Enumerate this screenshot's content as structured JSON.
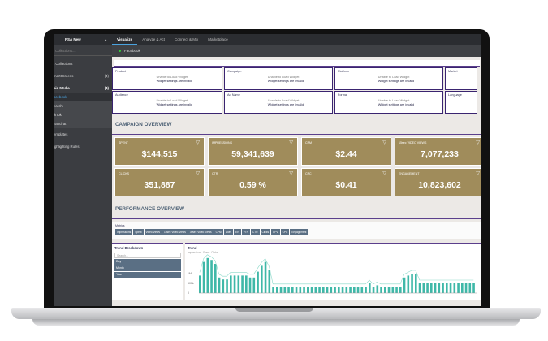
{
  "topbar": {
    "brand": "PSA New",
    "tabs": [
      "Visualize",
      "Analyze & Act",
      "Connect & Mix",
      "Marketplace"
    ]
  },
  "sidebar": {
    "search_placeholder": "Collections...",
    "items": [
      {
        "label": "t Collections",
        "count": ""
      },
      {
        "label": "martScreens",
        "count": "(4)"
      },
      {
        "label": "aid Media",
        "count": "(4)"
      },
      {
        "label": "acebook",
        "count": ""
      },
      {
        "label": "earch",
        "count": ""
      },
      {
        "label": "ikTok",
        "count": ""
      },
      {
        "label": "napchat",
        "count": ""
      },
      {
        "label": "emplates",
        "count": ""
      },
      {
        "label": "ighlighting Rules",
        "count": ""
      }
    ]
  },
  "subheader": {
    "label": "Facebook"
  },
  "widgets": [
    {
      "title": "Product",
      "line1": "Unable to Load Widget",
      "line2": "Widget settings are invalid"
    },
    {
      "title": "Campaign",
      "line1": "Unable to Load Widget",
      "line2": "Widget settings are invalid"
    },
    {
      "title": "Platform",
      "line1": "Unable to Load Widget",
      "line2": "Widget settings are invalid"
    },
    {
      "title": "Market",
      "line1": "",
      "line2": ""
    },
    {
      "title": "Audience",
      "line1": "Unable to Load Widget",
      "line2": "Widget settings are invalid"
    },
    {
      "title": "Ad Name",
      "line1": "Unable to Load Widget",
      "line2": "Widget settings are invalid"
    },
    {
      "title": "Format",
      "line1": "Unable to Load Widget",
      "line2": "Widget settings are invalid"
    },
    {
      "title": "Language",
      "line1": "",
      "line2": ""
    }
  ],
  "campaign_overview": {
    "title": "CAMPAIGN OVERVIEW",
    "kpis": [
      {
        "label": "SPENT",
        "value": "$144,515"
      },
      {
        "label": "IMPRESSIONS",
        "value": "59,341,639"
      },
      {
        "label": "CPM",
        "value": "$2.44"
      },
      {
        "label": "15sec VIDEO VIEWS",
        "value": "7,077,233"
      },
      {
        "label": "CLICKS",
        "value": "351,887"
      },
      {
        "label": "CTR",
        "value": "0.59 %"
      },
      {
        "label": "CPC",
        "value": "$0.41"
      },
      {
        "label": "ENGAGEMENT",
        "value": "10,823,602"
      }
    ]
  },
  "performance_overview": {
    "title": "PERFORMANCE OVERVIEW",
    "metrics_label": "Metrics",
    "metrics": [
      "Impressions",
      "Spent",
      "Video Views",
      "15sec Video Views",
      "30sec Video Views",
      "CPM",
      "Likes",
      "ER",
      "VTR",
      "CTR",
      "Clicks",
      "CPV",
      "CPC",
      "Engagement"
    ],
    "trend_breakdown": {
      "title": "Trend Breakdown",
      "search_placeholder": "Search...",
      "options": [
        "Day",
        "Month",
        "Year"
      ]
    },
    "trend": {
      "title": "Trend",
      "legend": [
        "Impressions",
        "Spent",
        "Clicks"
      ],
      "axis_labels": [
        "1M",
        "500k",
        "0"
      ]
    }
  },
  "chart_data": {
    "type": "bar",
    "title": "Trend",
    "series": [
      {
        "name": "Impressions",
        "values": [
          0.9,
          1.6,
          1.8,
          1.7,
          1.5,
          0.8,
          0.7,
          0.7,
          0.9,
          0.9,
          0.9,
          0.9,
          0.9,
          0.8,
          0.8,
          1.1,
          1.4,
          1.6,
          1.2,
          0.3,
          0.3,
          0.3,
          0.3,
          0.3,
          0.3,
          0.3,
          0.3,
          0.3,
          0.3,
          0.3,
          0.3,
          0.3,
          0.3,
          0.3,
          0.3,
          0.3,
          0.3,
          0.3,
          0.3,
          0.3,
          0.3,
          0.3,
          0.3,
          0.3,
          0.5,
          0.3,
          0.4,
          0.3,
          0.3,
          0.3,
          0.3,
          0.3,
          0.3,
          0.8,
          0.9,
          1.0,
          1.0,
          0.5,
          0.5,
          0.5,
          0.5,
          0.5,
          0.5,
          0.5,
          0.5,
          0.5,
          0.5,
          0.5,
          0.5,
          0.5,
          0.5,
          0.5
        ]
      }
    ]
  }
}
